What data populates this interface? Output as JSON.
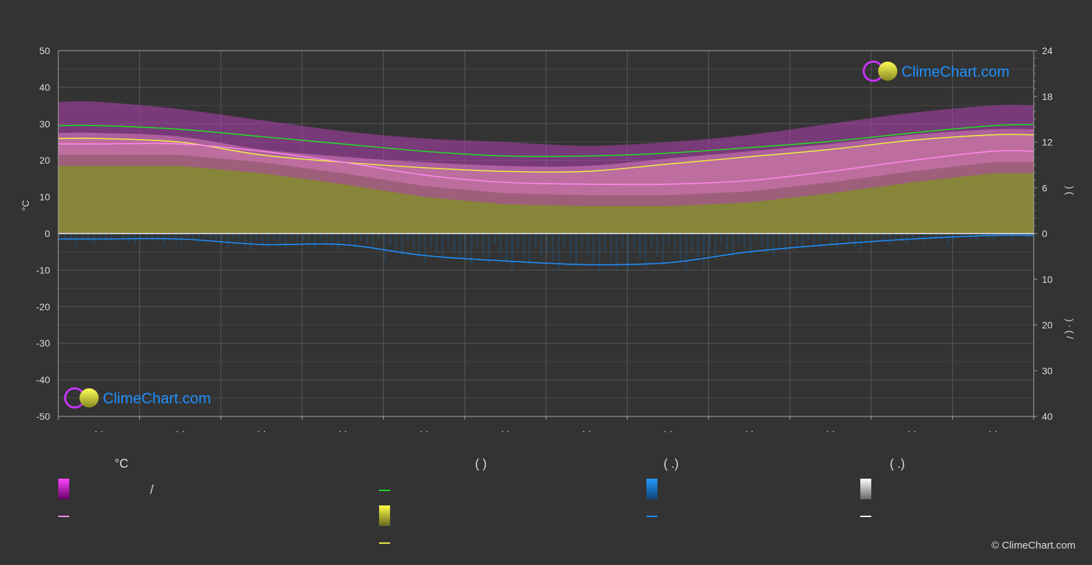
{
  "chart_data": {
    "type": "line",
    "left_axis": {
      "label": "°C",
      "ticks": [
        50,
        40,
        30,
        20,
        10,
        0,
        -10,
        -20,
        -30,
        -40,
        -50
      ],
      "range": [
        -50,
        50
      ]
    },
    "right_axis_top": {
      "ticks": [
        24,
        18,
        12,
        6,
        0
      ],
      "range": [
        0,
        24
      ],
      "label": ")           ("
    },
    "right_axis_bottom": {
      "ticks": [
        0,
        10,
        20,
        30,
        40
      ],
      "range": [
        0,
        40
      ],
      "label": ")   ·   (   /"
    },
    "x_ticks": [
      "· ·",
      "· ·",
      "· ·",
      "· ·",
      "· ·",
      "· ·",
      "· ·",
      "· ·",
      "· ·",
      "· ·",
      "· ·",
      "· ·"
    ],
    "months": 12,
    "series": [
      {
        "color": "#22dd22",
        "values": [
          29.5,
          28.5,
          26.5,
          24.5,
          22.5,
          21.2,
          21.2,
          22.0,
          23.5,
          25.2,
          27.5,
          29.5,
          29.8
        ]
      },
      {
        "color": "#eeee44",
        "values": [
          26.0,
          25.0,
          21.5,
          19.5,
          18.0,
          17.0,
          17.0,
          19.0,
          21.0,
          23.0,
          25.5,
          27.0,
          27.0
        ]
      },
      {
        "color": "#ff88ee",
        "values": [
          24.5,
          24.5,
          22.5,
          19.5,
          16.0,
          14.0,
          13.5,
          13.5,
          14.5,
          17.0,
          20.0,
          22.5,
          22.5
        ]
      },
      {
        "color": "#1e90ff",
        "values": [
          -1.5,
          -1.5,
          -3.0,
          -3.0,
          -6.0,
          -7.5,
          -8.5,
          -8.0,
          -5.0,
          -3.0,
          -1.5,
          -0.5,
          -0.5
        ]
      }
    ],
    "sunshine_hours_per_day": [
      24.5,
      24.0,
      22.0,
      20.0,
      17.5,
      17.0,
      17.0,
      19.0,
      21.0,
      23.0,
      25.0,
      26.5,
      26.5
    ],
    "daily_band_max": [
      36,
      34,
      31,
      28,
      26,
      25,
      24,
      25,
      27,
      30,
      33,
      35,
      35
    ]
  },
  "legend": {
    "col1_header": "°C",
    "col1_sep": "/",
    "col2_header": "(           )",
    "col3_header": "(    .)",
    "col4_header": "(    .)"
  },
  "logo": {
    "text": "ClimeChart.com"
  },
  "copyright": "© ClimeChart.com",
  "colors": {
    "background": "#333333",
    "grid": "#555555",
    "daylight": "#22dd22",
    "sunshine": "#eeee44",
    "temperature": "#ff88ee",
    "temperature_band": "#cc22cc",
    "rain": "#1e90ff",
    "snow": "#ffffff",
    "logo_blue": "#1e90ff"
  }
}
